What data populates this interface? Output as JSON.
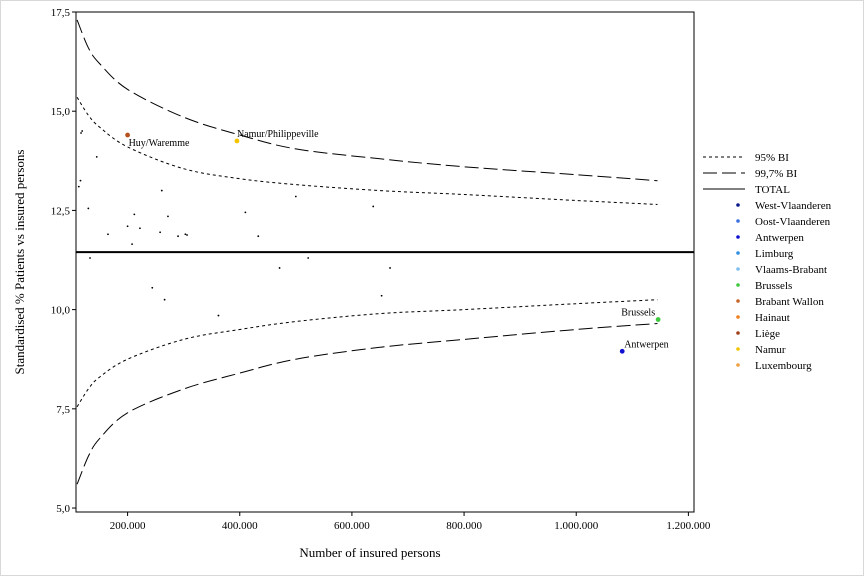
{
  "chart_data": {
    "type": "scatter",
    "xlabel": "Number of insured persons",
    "ylabel": "Standardised % Patients vs insured persons",
    "xlim": [
      108000,
      1210000
    ],
    "ylim": [
      4.9,
      17.5
    ],
    "x_ticks": [
      200000,
      400000,
      600000,
      800000,
      1000000,
      1200000
    ],
    "x_tick_labels": [
      "200.000",
      "400.000",
      "600.000",
      "800.000",
      "1.000.000",
      "1.200.000"
    ],
    "y_ticks": [
      5.0,
      7.5,
      10.0,
      12.5,
      15.0,
      17.5
    ],
    "y_tick_labels": [
      "5,0",
      "7,5",
      "10,0",
      "12,5",
      "15,0",
      "17,5"
    ],
    "total": 11.45,
    "bands": {
      "ci95_upper": [
        [
          110000,
          15.35
        ],
        [
          130000,
          14.9
        ],
        [
          150000,
          14.6
        ],
        [
          200000,
          14.1
        ],
        [
          300000,
          13.55
        ],
        [
          400000,
          13.3
        ],
        [
          500000,
          13.15
        ],
        [
          650000,
          13.0
        ],
        [
          800000,
          12.9
        ],
        [
          1000000,
          12.75
        ],
        [
          1145000,
          12.65
        ]
      ],
      "ci95_lower": [
        [
          110000,
          7.55
        ],
        [
          130000,
          8.0
        ],
        [
          150000,
          8.3
        ],
        [
          200000,
          8.75
        ],
        [
          300000,
          9.25
        ],
        [
          400000,
          9.5
        ],
        [
          500000,
          9.7
        ],
        [
          650000,
          9.9
        ],
        [
          800000,
          10.0
        ],
        [
          1000000,
          10.15
        ],
        [
          1145000,
          10.25
        ]
      ],
      "ci997_upper": [
        [
          110000,
          17.3
        ],
        [
          130000,
          16.6
        ],
        [
          150000,
          16.2
        ],
        [
          200000,
          15.55
        ],
        [
          300000,
          14.85
        ],
        [
          400000,
          14.4
        ],
        [
          500000,
          14.05
        ],
        [
          650000,
          13.8
        ],
        [
          800000,
          13.6
        ],
        [
          1000000,
          13.4
        ],
        [
          1145000,
          13.25
        ]
      ],
      "ci997_lower": [
        [
          110000,
          5.6
        ],
        [
          130000,
          6.3
        ],
        [
          150000,
          6.75
        ],
        [
          200000,
          7.4
        ],
        [
          300000,
          8.0
        ],
        [
          400000,
          8.4
        ],
        [
          500000,
          8.75
        ],
        [
          650000,
          9.05
        ],
        [
          800000,
          9.25
        ],
        [
          1000000,
          9.5
        ],
        [
          1145000,
          9.65
        ]
      ]
    },
    "points": [
      {
        "x": 113000,
        "y": 13.1
      },
      {
        "x": 116000,
        "y": 13.25
      },
      {
        "x": 117000,
        "y": 14.45
      },
      {
        "x": 119000,
        "y": 14.5
      },
      {
        "x": 130000,
        "y": 12.55
      },
      {
        "x": 133000,
        "y": 11.3
      },
      {
        "x": 145000,
        "y": 13.85
      },
      {
        "x": 165000,
        "y": 11.9
      },
      {
        "x": 200000,
        "y": 12.1
      },
      {
        "x": 208000,
        "y": 11.65
      },
      {
        "x": 212000,
        "y": 12.4
      },
      {
        "x": 222000,
        "y": 12.05
      },
      {
        "x": 244000,
        "y": 10.55
      },
      {
        "x": 258000,
        "y": 11.95
      },
      {
        "x": 261000,
        "y": 13.0
      },
      {
        "x": 266000,
        "y": 10.25
      },
      {
        "x": 272000,
        "y": 12.35
      },
      {
        "x": 290000,
        "y": 11.85
      },
      {
        "x": 303000,
        "y": 11.9
      },
      {
        "x": 306000,
        "y": 11.88
      },
      {
        "x": 362000,
        "y": 9.85
      },
      {
        "x": 410000,
        "y": 12.45
      },
      {
        "x": 433000,
        "y": 11.85
      },
      {
        "x": 471000,
        "y": 11.05
      },
      {
        "x": 500000,
        "y": 12.85
      },
      {
        "x": 522000,
        "y": 11.3
      },
      {
        "x": 638000,
        "y": 12.6
      },
      {
        "x": 653000,
        "y": 10.35
      },
      {
        "x": 668000,
        "y": 11.05
      }
    ],
    "highlighted_points": [
      {
        "x": 200000,
        "y": 14.4,
        "color": "#b5511c",
        "label": "Huy/Waremme"
      },
      {
        "x": 395000,
        "y": 14.25,
        "color": "#f2c500",
        "label": "Namur/Philippeville"
      },
      {
        "x": 1146000,
        "y": 9.75,
        "color": "#3ec83e",
        "label": "Brussels"
      },
      {
        "x": 1082000,
        "y": 8.95,
        "color": "#1010d0",
        "label": "Antwerpen"
      }
    ],
    "legend": {
      "placement": "right",
      "lines": [
        {
          "label": "95% BI",
          "style": "dotted"
        },
        {
          "label": "99,7% BI",
          "style": "dashed"
        },
        {
          "label": "TOTAL",
          "style": "solid"
        }
      ],
      "markers": [
        {
          "label": "West-Vlaanderen",
          "color": "#0a1a8c"
        },
        {
          "label": "Oost-Vlaanderen",
          "color": "#3a6fe0"
        },
        {
          "label": "Antwerpen",
          "color": "#1010d0"
        },
        {
          "label": "Limburg",
          "color": "#2f8fe0"
        },
        {
          "label": "Vlaams-Brabant",
          "color": "#7fbff0"
        },
        {
          "label": "Brussels",
          "color": "#3ec83e"
        },
        {
          "label": "Brabant Wallon",
          "color": "#c8642a"
        },
        {
          "label": "Hainaut",
          "color": "#f07f1e"
        },
        {
          "label": "Liège",
          "color": "#a0401a"
        },
        {
          "label": "Namur",
          "color": "#f2c500"
        },
        {
          "label": "Luxembourg",
          "color": "#f0a040"
        }
      ]
    }
  }
}
